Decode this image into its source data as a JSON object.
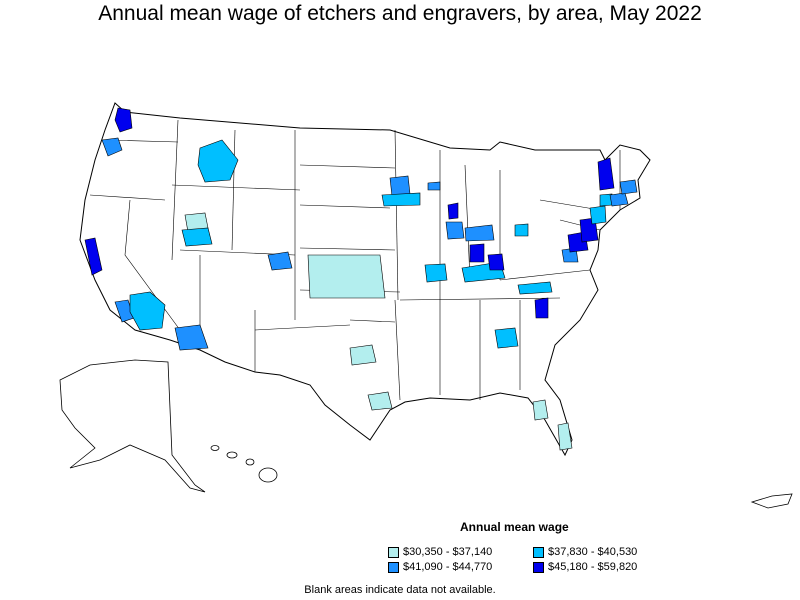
{
  "title": "Annual mean wage of etchers and engravers, by area, May 2022",
  "legend": {
    "title": "Annual mean wage",
    "items": [
      {
        "label": "$30,350 - $37,140",
        "color": "#b3eeee"
      },
      {
        "label": "$37,830 - $40,530",
        "color": "#00bfff"
      },
      {
        "label": "$41,090 - $44,770",
        "color": "#1e90ff"
      },
      {
        "label": "$45,180 - $59,820",
        "color": "#0000ee"
      }
    ]
  },
  "footnote": "Blank areas indicate data not available."
}
